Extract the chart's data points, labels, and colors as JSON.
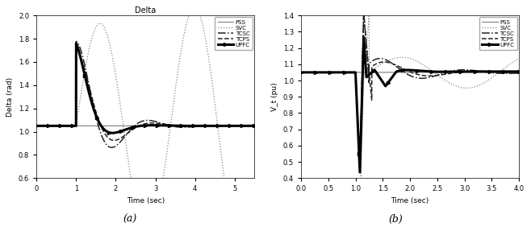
{
  "title_a": "Delta",
  "xlabel_a": "Time (sec)",
  "xlabel_b": "Time (sec)",
  "ylabel_a": "Delta (rad)",
  "ylabel_b": "V_t (pu)",
  "label_a": "(a)",
  "label_b": "(b)",
  "xlim_a": [
    0,
    5.5
  ],
  "ylim_a": [
    0.6,
    2.0
  ],
  "xlim_b": [
    0,
    4.0
  ],
  "ylim_b": [
    0.4,
    1.4
  ],
  "xticks_a": [
    0,
    1,
    2,
    3,
    4,
    5
  ],
  "xticks_b": [
    0,
    0.5,
    1.0,
    1.5,
    2.0,
    2.5,
    3.0,
    3.5,
    4.0
  ],
  "yticks_a": [
    0.6,
    0.8,
    1.0,
    1.2,
    1.4,
    1.6,
    1.8,
    2.0
  ],
  "yticks_b": [
    0.4,
    0.5,
    0.6,
    0.7,
    0.8,
    0.9,
    1.0,
    1.1,
    1.2,
    1.3,
    1.4
  ],
  "legend_labels": [
    "PSS",
    "SVC",
    "TCSC",
    "TCPS",
    "UPFC"
  ],
  "bg_color": "#ffffff"
}
